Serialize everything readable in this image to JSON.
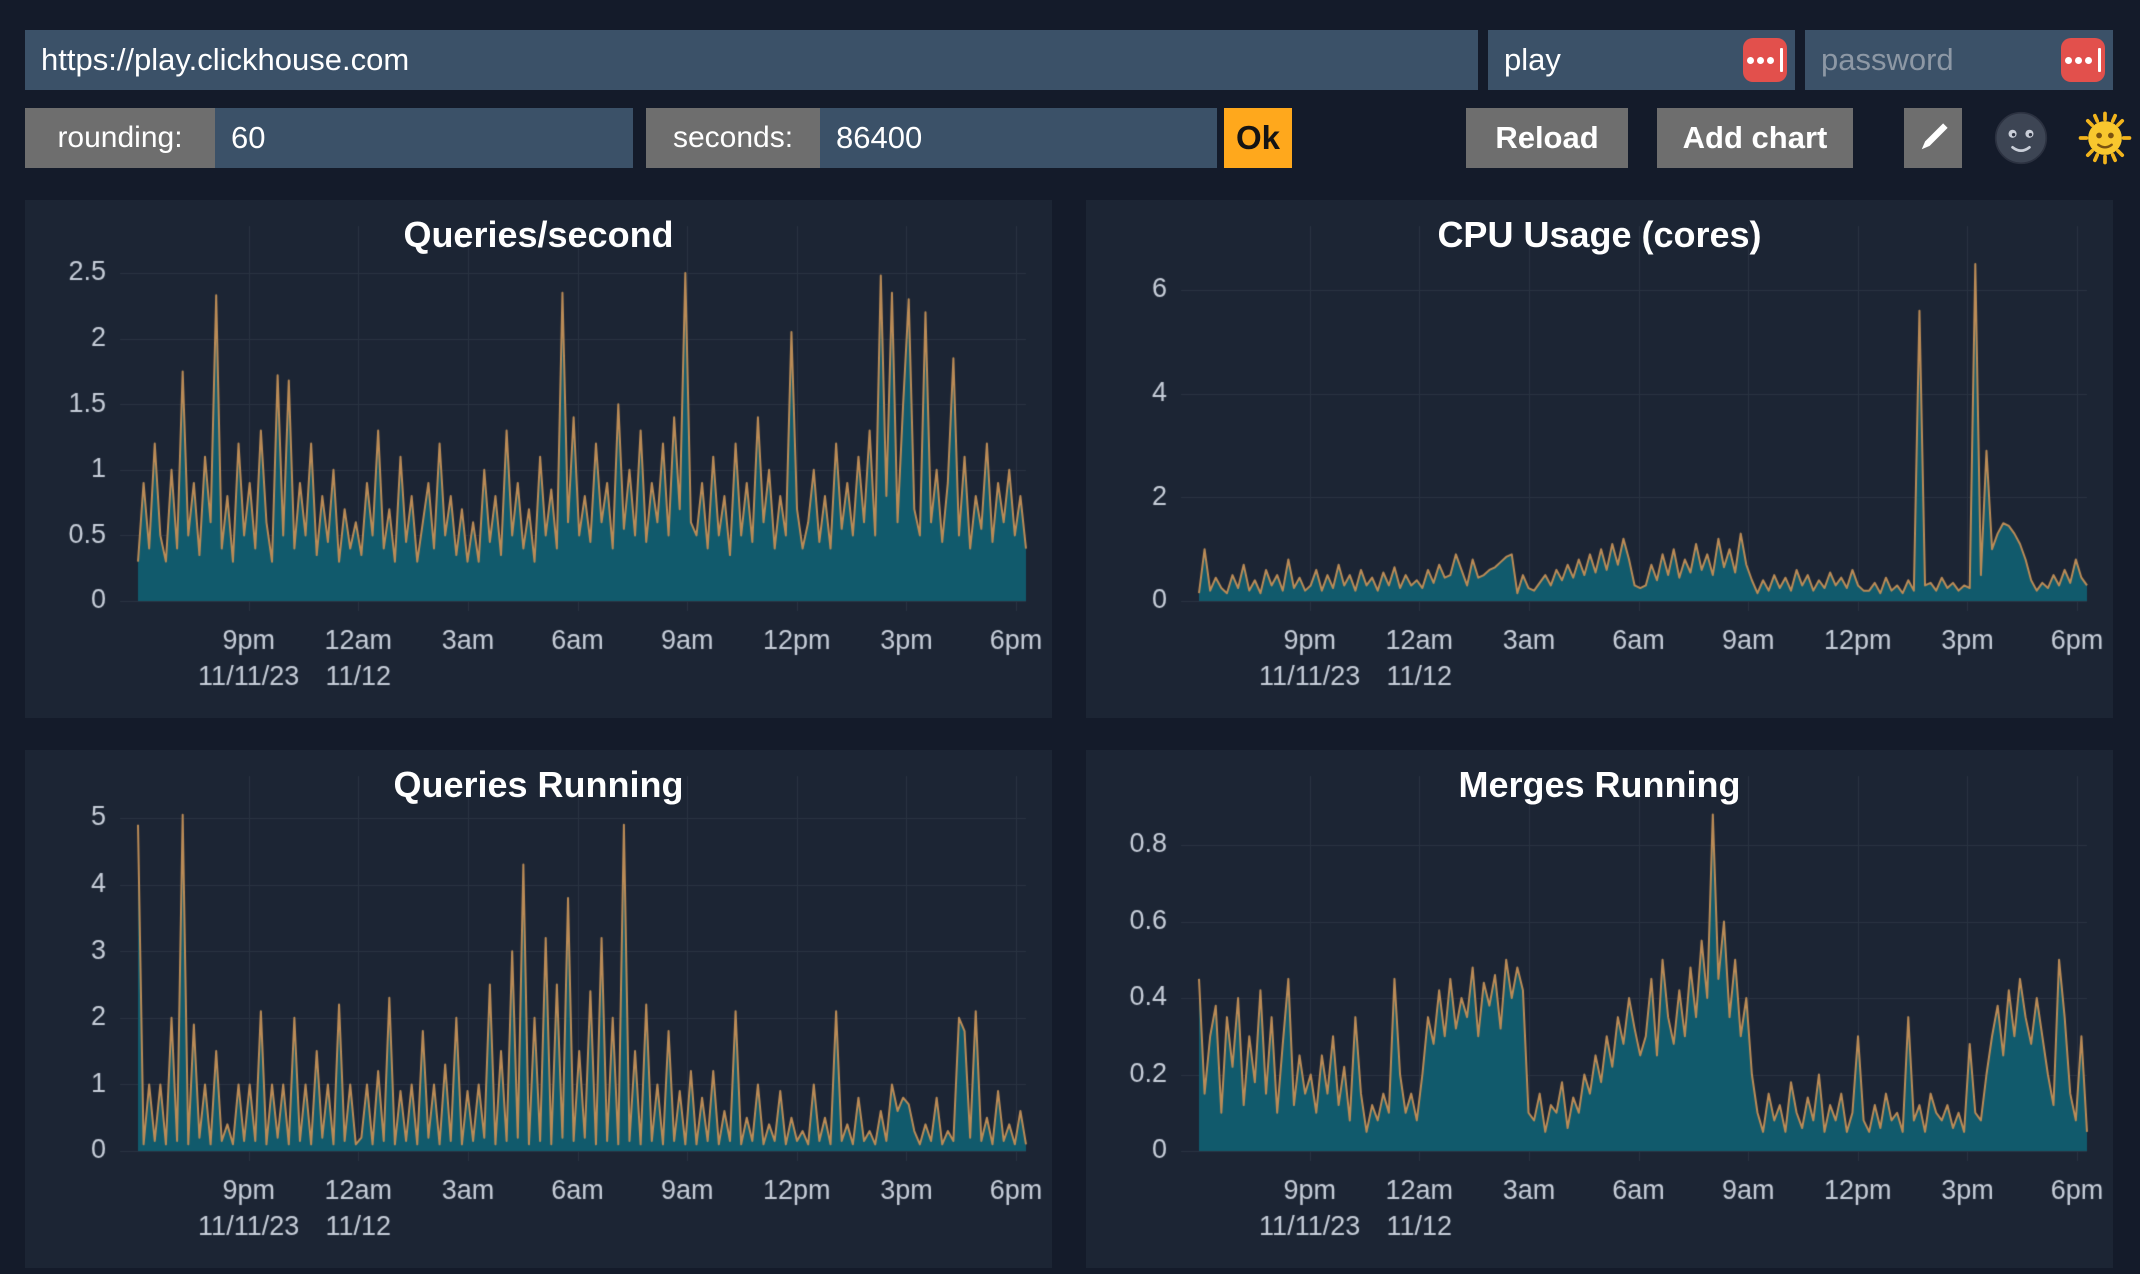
{
  "address_bar": {
    "url_value": "https://play.clickhouse.com",
    "user_value": "play",
    "password_placeholder": "password"
  },
  "toolbar": {
    "rounding_label": "rounding:",
    "rounding_value": "60",
    "seconds_label": "seconds:",
    "seconds_value": "86400",
    "ok_label": "Ok",
    "reload_label": "Reload",
    "add_chart_label": "Add chart",
    "icons": [
      "pencil-icon",
      "moon-face-icon",
      "sun-face-icon",
      "password-manager-dots-icon"
    ]
  },
  "colors": {
    "page_bg": "#141b2a",
    "panel_bg": "#1c2534",
    "input_bg": "#3b5168",
    "label_bg": "#6e6e6e",
    "ok_bg": "#ffa81c",
    "red_icon_bg": "#e2504c",
    "grid": "#2a3342",
    "tick_text": "#c6cdd8",
    "series_stroke": "#bb8c57",
    "series_fill": "#115a6c"
  },
  "chart_data": [
    {
      "type": "area",
      "title": "Queries/second",
      "xlabel": "",
      "ylabel": "",
      "x_ticks": [
        "9pm",
        "12am",
        "3am",
        "6am",
        "9am",
        "12pm",
        "3pm",
        "6pm"
      ],
      "x_date_labels": [
        {
          "text": "11/11/23",
          "tick": 0
        },
        {
          "text": "11/12",
          "tick": 1
        }
      ],
      "y_ticks": [
        0,
        0.5,
        1,
        1.5,
        2,
        2.5
      ],
      "ylim": [
        0,
        2.6
      ],
      "grid": true,
      "legend": "none",
      "series": [
        {
          "name": "Queries/second",
          "values": [
            0.3,
            0.9,
            0.4,
            1.2,
            0.5,
            0.3,
            1.0,
            0.4,
            1.75,
            0.5,
            0.9,
            0.35,
            1.1,
            0.6,
            2.33,
            0.4,
            0.8,
            0.3,
            1.2,
            0.5,
            0.9,
            0.4,
            1.3,
            0.6,
            0.3,
            1.72,
            0.5,
            1.68,
            0.4,
            0.9,
            0.5,
            1.2,
            0.35,
            0.8,
            0.45,
            1.0,
            0.3,
            0.7,
            0.4,
            0.6,
            0.35,
            0.9,
            0.5,
            1.3,
            0.4,
            0.7,
            0.3,
            1.1,
            0.45,
            0.8,
            0.3,
            0.6,
            0.9,
            0.4,
            1.2,
            0.5,
            0.8,
            0.35,
            0.7,
            0.3,
            0.6,
            0.3,
            1.0,
            0.45,
            0.8,
            0.35,
            1.3,
            0.5,
            0.9,
            0.4,
            0.7,
            0.3,
            1.1,
            0.5,
            0.85,
            0.4,
            2.35,
            0.6,
            1.4,
            0.5,
            0.8,
            0.45,
            1.2,
            0.6,
            0.9,
            0.4,
            1.5,
            0.55,
            1.0,
            0.5,
            1.3,
            0.45,
            0.9,
            0.6,
            1.2,
            0.5,
            1.4,
            0.7,
            2.5,
            0.6,
            0.5,
            0.9,
            0.4,
            1.1,
            0.5,
            0.8,
            0.35,
            1.2,
            0.5,
            0.9,
            0.45,
            1.4,
            0.6,
            1.0,
            0.4,
            0.8,
            0.5,
            2.05,
            0.7,
            0.4,
            0.6,
            1.0,
            0.45,
            0.8,
            0.4,
            1.2,
            0.55,
            0.9,
            0.5,
            1.1,
            0.6,
            1.3,
            0.5,
            2.48,
            0.8,
            2.35,
            0.6,
            1.5,
            2.3,
            0.7,
            0.5,
            2.2,
            0.6,
            1.0,
            0.45,
            0.9,
            1.85,
            0.5,
            1.1,
            0.4,
            0.8,
            0.55,
            1.2,
            0.45,
            0.9,
            0.6,
            1.0,
            0.5,
            0.8,
            0.4
          ]
        }
      ]
    },
    {
      "type": "area",
      "title": "CPU Usage (cores)",
      "xlabel": "",
      "ylabel": "",
      "x_ticks": [
        "9pm",
        "12am",
        "3am",
        "6am",
        "9am",
        "12pm",
        "3pm",
        "6pm"
      ],
      "x_date_labels": [
        {
          "text": "11/11/23",
          "tick": 0
        },
        {
          "text": "11/12",
          "tick": 1
        }
      ],
      "y_ticks": [
        0,
        2,
        4,
        6
      ],
      "ylim": [
        0,
        6.6
      ],
      "grid": true,
      "legend": "none",
      "series": [
        {
          "name": "CPU Usage (cores)",
          "values": [
            0.15,
            1.0,
            0.2,
            0.45,
            0.25,
            0.15,
            0.5,
            0.25,
            0.7,
            0.2,
            0.4,
            0.15,
            0.6,
            0.3,
            0.5,
            0.2,
            0.8,
            0.25,
            0.45,
            0.2,
            0.3,
            0.6,
            0.2,
            0.5,
            0.25,
            0.7,
            0.3,
            0.5,
            0.2,
            0.6,
            0.3,
            0.45,
            0.2,
            0.55,
            0.3,
            0.65,
            0.25,
            0.5,
            0.3,
            0.4,
            0.25,
            0.6,
            0.35,
            0.7,
            0.45,
            0.5,
            0.9,
            0.6,
            0.3,
            0.8,
            0.45,
            0.5,
            0.6,
            0.65,
            0.75,
            0.85,
            0.9,
            0.15,
            0.5,
            0.25,
            0.2,
            0.35,
            0.5,
            0.3,
            0.6,
            0.4,
            0.7,
            0.45,
            0.8,
            0.5,
            0.9,
            0.55,
            1.0,
            0.6,
            1.1,
            0.7,
            1.2,
            0.8,
            0.3,
            0.25,
            0.3,
            0.7,
            0.4,
            0.9,
            0.5,
            1.0,
            0.45,
            0.8,
            0.55,
            1.1,
            0.6,
            0.9,
            0.5,
            1.2,
            0.65,
            1.0,
            0.55,
            1.3,
            0.7,
            0.4,
            0.15,
            0.4,
            0.2,
            0.5,
            0.25,
            0.45,
            0.2,
            0.6,
            0.3,
            0.5,
            0.2,
            0.4,
            0.25,
            0.55,
            0.3,
            0.45,
            0.25,
            0.6,
            0.3,
            0.2,
            0.2,
            0.35,
            0.15,
            0.45,
            0.2,
            0.3,
            0.15,
            0.4,
            0.2,
            5.6,
            0.3,
            0.35,
            0.2,
            0.45,
            0.25,
            0.35,
            0.2,
            0.3,
            0.25,
            6.5,
            0.5,
            2.9,
            1.0,
            1.3,
            1.5,
            1.45,
            1.3,
            1.1,
            0.8,
            0.4,
            0.2,
            0.35,
            0.25,
            0.5,
            0.3,
            0.6,
            0.35,
            0.8,
            0.45,
            0.3
          ]
        }
      ]
    },
    {
      "type": "area",
      "title": "Queries Running",
      "xlabel": "",
      "ylabel": "",
      "x_ticks": [
        "9pm",
        "12am",
        "3am",
        "6am",
        "9am",
        "12pm",
        "3pm",
        "6pm"
      ],
      "x_date_labels": [
        {
          "text": "11/11/23",
          "tick": 0
        },
        {
          "text": "11/12",
          "tick": 1
        }
      ],
      "y_ticks": [
        0,
        1,
        2,
        3,
        4,
        5
      ],
      "ylim": [
        0,
        5.2
      ],
      "grid": true,
      "legend": "none",
      "series": [
        {
          "name": "Queries Running",
          "values": [
            4.9,
            0.1,
            1.0,
            0.15,
            1.0,
            0.1,
            2.0,
            0.15,
            5.05,
            0.1,
            1.9,
            0.2,
            1.0,
            0.1,
            1.5,
            0.15,
            0.4,
            0.1,
            1.0,
            0.15,
            1.0,
            0.15,
            2.1,
            0.1,
            1.0,
            0.2,
            1.0,
            0.1,
            2.0,
            0.15,
            1.0,
            0.1,
            1.5,
            0.2,
            1.0,
            0.1,
            2.2,
            0.15,
            1.0,
            0.1,
            0.2,
            1.0,
            0.1,
            1.2,
            0.15,
            2.3,
            0.1,
            0.9,
            0.15,
            1.0,
            0.1,
            1.8,
            0.2,
            1.0,
            0.1,
            1.3,
            0.15,
            2.0,
            0.1,
            0.9,
            0.15,
            1.0,
            0.2,
            2.5,
            0.1,
            1.5,
            0.15,
            3.0,
            0.2,
            4.3,
            0.1,
            2.0,
            0.15,
            3.2,
            0.1,
            2.5,
            0.2,
            3.8,
            0.15,
            1.5,
            0.2,
            2.4,
            0.1,
            3.2,
            0.15,
            2.0,
            0.1,
            4.9,
            0.15,
            1.5,
            0.1,
            2.2,
            0.15,
            1.0,
            0.1,
            1.8,
            0.15,
            0.9,
            0.1,
            1.2,
            0.1,
            0.8,
            0.15,
            1.2,
            0.1,
            0.6,
            0.15,
            2.1,
            0.1,
            0.5,
            0.15,
            1.0,
            0.1,
            0.4,
            0.15,
            0.9,
            0.1,
            0.5,
            0.15,
            0.3,
            0.1,
            1.0,
            0.15,
            0.5,
            0.1,
            2.1,
            0.15,
            0.4,
            0.1,
            0.8,
            0.15,
            0.3,
            0.1,
            0.6,
            0.15,
            1.0,
            0.6,
            0.8,
            0.7,
            0.3,
            0.1,
            0.4,
            0.15,
            0.8,
            0.1,
            0.3,
            0.15,
            2.0,
            1.8,
            0.2,
            2.1,
            0.15,
            0.5,
            0.1,
            0.9,
            0.15,
            0.4,
            0.1,
            0.6,
            0.1
          ]
        }
      ]
    },
    {
      "type": "area",
      "title": "Merges Running",
      "xlabel": "",
      "ylabel": "",
      "x_ticks": [
        "9pm",
        "12am",
        "3am",
        "6am",
        "9am",
        "12pm",
        "3pm",
        "6pm"
      ],
      "x_date_labels": [
        {
          "text": "11/11/23",
          "tick": 0
        },
        {
          "text": "11/12",
          "tick": 1
        }
      ],
      "y_ticks": [
        0,
        0.2,
        0.4,
        0.6,
        0.8
      ],
      "ylim": [
        0,
        0.92
      ],
      "grid": true,
      "legend": "none",
      "series": [
        {
          "name": "Merges Running",
          "values": [
            0.45,
            0.15,
            0.3,
            0.38,
            0.1,
            0.35,
            0.22,
            0.4,
            0.12,
            0.3,
            0.18,
            0.42,
            0.15,
            0.35,
            0.1,
            0.28,
            0.45,
            0.12,
            0.25,
            0.15,
            0.2,
            0.1,
            0.25,
            0.15,
            0.3,
            0.12,
            0.22,
            0.08,
            0.35,
            0.15,
            0.05,
            0.12,
            0.08,
            0.15,
            0.1,
            0.45,
            0.2,
            0.1,
            0.15,
            0.08,
            0.2,
            0.35,
            0.28,
            0.42,
            0.3,
            0.45,
            0.32,
            0.4,
            0.35,
            0.48,
            0.3,
            0.44,
            0.38,
            0.46,
            0.32,
            0.5,
            0.4,
            0.48,
            0.42,
            0.1,
            0.08,
            0.15,
            0.05,
            0.12,
            0.1,
            0.18,
            0.06,
            0.14,
            0.1,
            0.2,
            0.15,
            0.25,
            0.18,
            0.3,
            0.22,
            0.35,
            0.28,
            0.4,
            0.32,
            0.25,
            0.3,
            0.45,
            0.25,
            0.5,
            0.35,
            0.28,
            0.42,
            0.3,
            0.48,
            0.35,
            0.55,
            0.4,
            0.88,
            0.45,
            0.6,
            0.35,
            0.5,
            0.3,
            0.4,
            0.2,
            0.1,
            0.05,
            0.15,
            0.08,
            0.12,
            0.05,
            0.18,
            0.1,
            0.06,
            0.14,
            0.08,
            0.2,
            0.05,
            0.12,
            0.08,
            0.15,
            0.05,
            0.1,
            0.3,
            0.08,
            0.05,
            0.12,
            0.06,
            0.15,
            0.08,
            0.1,
            0.05,
            0.35,
            0.08,
            0.12,
            0.05,
            0.15,
            0.1,
            0.08,
            0.12,
            0.06,
            0.1,
            0.05,
            0.28,
            0.1,
            0.08,
            0.2,
            0.3,
            0.38,
            0.25,
            0.42,
            0.3,
            0.45,
            0.35,
            0.28,
            0.4,
            0.3,
            0.2,
            0.12,
            0.5,
            0.35,
            0.15,
            0.08,
            0.3,
            0.05
          ]
        }
      ]
    }
  ]
}
